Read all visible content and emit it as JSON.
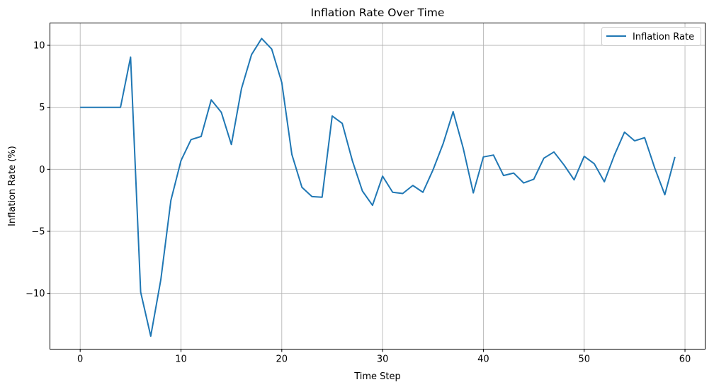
{
  "chart_data": {
    "type": "line",
    "title": "Inflation Rate Over Time",
    "xlabel": "Time Step",
    "ylabel": "Inflation Rate (%)",
    "xlim": [
      -3,
      62
    ],
    "ylim": [
      -14.5,
      11.8
    ],
    "xticks": [
      0,
      10,
      20,
      30,
      40,
      50,
      60
    ],
    "yticks": [
      -10,
      -5,
      0,
      5,
      10
    ],
    "xtick_labels": [
      "0",
      "10",
      "20",
      "30",
      "40",
      "50",
      "60"
    ],
    "ytick_labels": [
      "−10",
      "−5",
      "0",
      "5",
      "10"
    ],
    "grid": true,
    "legend_position": "top-right",
    "line_color": "#1f77b4",
    "series": [
      {
        "name": "Inflation Rate",
        "x": [
          0,
          1,
          2,
          3,
          4,
          5,
          6,
          7,
          8,
          9,
          10,
          11,
          12,
          13,
          14,
          15,
          16,
          17,
          18,
          19,
          20,
          21,
          22,
          23,
          24,
          25,
          26,
          27,
          28,
          29,
          30,
          31,
          32,
          33,
          34,
          35,
          36,
          37,
          38,
          39,
          40,
          41,
          42,
          43,
          44,
          45,
          46,
          47,
          48,
          49,
          50,
          51,
          52,
          53,
          54,
          55,
          56,
          57,
          58,
          59
        ],
        "values": [
          5.0,
          5.0,
          5.0,
          5.0,
          5.0,
          9.05,
          -9.9,
          -13.45,
          -8.9,
          -2.5,
          0.7,
          2.4,
          2.65,
          5.6,
          4.6,
          2.0,
          6.5,
          9.25,
          10.55,
          9.7,
          7.0,
          1.2,
          -1.45,
          -2.2,
          -2.25,
          4.3,
          3.7,
          0.7,
          -1.75,
          -2.9,
          -0.55,
          -1.85,
          -1.95,
          -1.3,
          -1.85,
          -0.05,
          2.05,
          4.65,
          1.7,
          -1.9,
          1.0,
          1.15,
          -0.5,
          -0.3,
          -1.1,
          -0.8,
          0.9,
          1.4,
          0.35,
          -0.85,
          1.05,
          0.45,
          -1.0,
          1.15,
          3.0,
          2.3,
          2.55,
          0.1,
          -2.05,
          1.0
        ]
      }
    ]
  }
}
